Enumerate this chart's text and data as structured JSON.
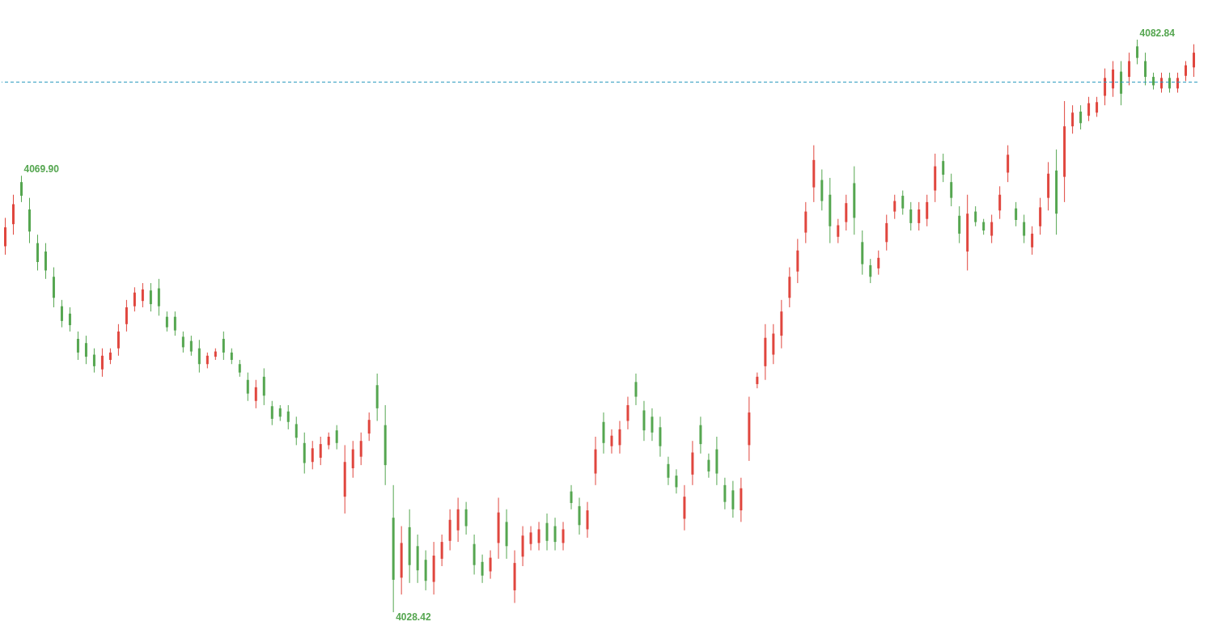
{
  "chart_data": {
    "type": "candlestick",
    "categories": [
      null,
      null,
      null,
      null,
      null,
      null,
      null,
      null,
      null,
      null,
      null,
      null,
      null,
      null,
      null,
      null,
      null,
      null,
      null,
      null,
      null,
      null,
      null,
      null,
      null,
      null,
      null,
      null,
      null,
      null,
      null,
      null,
      null,
      null,
      null,
      null,
      null,
      null,
      null,
      null,
      null,
      null,
      null,
      null,
      null,
      null,
      null,
      null,
      null,
      null,
      null,
      null,
      null,
      null,
      null,
      null,
      null,
      null,
      null,
      null,
      null,
      null,
      null,
      null,
      null,
      null,
      null,
      null,
      null,
      null,
      null,
      null,
      null,
      null,
      null,
      null,
      null,
      null,
      null,
      null,
      null,
      null,
      null,
      null,
      null,
      null,
      null,
      null,
      null,
      null,
      null,
      null,
      null,
      null,
      null,
      null,
      null,
      null,
      null,
      null,
      null,
      null,
      null,
      null,
      null,
      null,
      null,
      null,
      null,
      null,
      null,
      null,
      null,
      null,
      null,
      null,
      null,
      null,
      null,
      null,
      null,
      null,
      null,
      null,
      null,
      null,
      null,
      null,
      null,
      null,
      null,
      null,
      null,
      null,
      null,
      null,
      null,
      null,
      null,
      null,
      null,
      null,
      null,
      null,
      null,
      null,
      null,
      null
    ],
    "colors": [
      "#e0463e",
      "#e0463e",
      "#55a650",
      "#55a650",
      "#55a650",
      "#55a650",
      "#55a650",
      "#55a650",
      "#55a650",
      "#55a650",
      "#55a650",
      "#55a650",
      "#e0463e",
      "#e0463e",
      "#e0463e",
      "#e0463e",
      "#e0463e",
      "#e0463e",
      "#55a650",
      "#55a650",
      "#55a650",
      "#55a650",
      "#55a650",
      "#55a650",
      "#55a650",
      "#e0463e",
      "#e0463e",
      "#55a650",
      "#55a650",
      "#55a650",
      "#55a650",
      "#e0463e",
      "#55a650",
      "#55a650",
      "#55a650",
      "#55a650",
      "#55a650",
      "#55a650",
      "#e0463e",
      "#e0463e",
      "#e0463e",
      "#55a650",
      "#e0463e",
      "#e0463e",
      "#e0463e",
      "#e0463e",
      "#55a650",
      "#55a650",
      "#55a650",
      "#e0463e",
      "#55a650",
      "#55a650",
      "#55a650",
      "#e0463e",
      "#e0463e",
      "#e0463e",
      "#e0463e",
      "#55a650",
      "#55a650",
      "#55a650",
      "#e0463e",
      "#e0463e",
      "#55a650",
      "#e0463e",
      "#e0463e",
      "#e0463e",
      "#e0463e",
      "#55a650",
      "#55a650",
      "#e0463e",
      "#55a650",
      "#55a650",
      "#e0463e",
      "#e0463e",
      "#55a650",
      "#e0463e",
      "#e0463e",
      "#e0463e",
      "#55a650",
      "#55a650",
      "#55a650",
      "#55a650",
      "#55a650",
      "#55a650",
      "#e0463e",
      "#e0463e",
      "#55a650",
      "#55a650",
      "#55a650",
      "#55a650",
      "#55a650",
      "#e0463e",
      "#e0463e",
      "#e0463e",
      "#e0463e",
      "#e0463e",
      "#e0463e",
      "#e0463e",
      "#e0463e",
      "#e0463e",
      "#e0463e",
      "#55a650",
      "#55a650",
      "#e0463e",
      "#e0463e",
      "#55a650",
      "#55a650",
      "#55a650",
      "#e0463e",
      "#e0463e",
      "#e0463e",
      "#55a650",
      "#55a650",
      "#e0463e",
      "#e0463e",
      "#e0463e",
      "#55a650",
      "#55a650",
      "#55a650",
      "#e0463e",
      "#55a650",
      "#55a650",
      "#e0463e",
      "#e0463e",
      "#e0463e",
      "#55a650",
      "#55a650",
      "#e0463e",
      "#e0463e",
      "#e0463e",
      "#55a650",
      "#e0463e",
      "#e0463e",
      "#55a650",
      "#e0463e",
      "#e0463e",
      "#e0463e",
      "#e0463e",
      "#55a650",
      "#e0463e",
      "#55a650",
      "#55a650",
      "#55a650",
      "#e0463e",
      "#55a650",
      "#e0463e",
      "#e0463e",
      "#e0463e"
    ],
    "ohlc": [
      [
        4063.2,
        4065.9,
        4062.4,
        4065.0
      ],
      [
        4065.3,
        4068.1,
        4064.3,
        4067.2
      ],
      [
        4069.3,
        4069.9,
        4067.4,
        4068.0
      ],
      [
        4066.7,
        4067.8,
        4063.5,
        4064.6
      ],
      [
        4063.5,
        4064.3,
        4060.9,
        4061.7
      ],
      [
        4062.7,
        4063.5,
        4060.1,
        4060.9
      ],
      [
        4060.3,
        4061.2,
        4057.4,
        4058.3
      ],
      [
        4057.5,
        4058.1,
        4055.5,
        4056.1
      ],
      [
        4056.8,
        4057.4,
        4055.1,
        4055.7
      ],
      [
        4054.4,
        4055.1,
        4052.4,
        4053.1
      ],
      [
        4054.0,
        4054.7,
        4052.0,
        4052.7
      ],
      [
        4052.9,
        4053.5,
        4051.2,
        4051.8
      ],
      [
        4051.5,
        4053.5,
        4050.8,
        4052.8
      ],
      [
        4052.4,
        4053.5,
        4052.0,
        4053.1
      ],
      [
        4053.5,
        4055.8,
        4052.8,
        4055.1
      ],
      [
        4055.8,
        4058.1,
        4055.1,
        4057.4
      ],
      [
        4057.5,
        4059.3,
        4057.0,
        4058.8
      ],
      [
        4058.0,
        4059.7,
        4057.4,
        4059.1
      ],
      [
        4059.0,
        4059.7,
        4057.0,
        4057.7
      ],
      [
        4059.2,
        4060.1,
        4056.6,
        4057.5
      ],
      [
        4056.5,
        4057.0,
        4055.1,
        4055.5
      ],
      [
        4056.5,
        4057.0,
        4054.7,
        4055.2
      ],
      [
        4054.6,
        4055.1,
        4053.1,
        4053.6
      ],
      [
        4054.2,
        4054.7,
        4052.8,
        4053.2
      ],
      [
        4053.5,
        4054.3,
        4051.2,
        4052.0
      ],
      [
        4052.0,
        4053.1,
        4051.6,
        4052.8
      ],
      [
        4052.7,
        4053.5,
        4052.4,
        4053.2
      ],
      [
        4054.4,
        4055.1,
        4052.4,
        4053.1
      ],
      [
        4053.1,
        4053.5,
        4052.0,
        4052.4
      ],
      [
        4052.0,
        4052.4,
        4050.8,
        4051.2
      ],
      [
        4050.5,
        4051.2,
        4048.5,
        4049.2
      ],
      [
        4048.5,
        4050.5,
        4047.8,
        4049.8
      ],
      [
        4050.8,
        4051.6,
        4048.1,
        4049.0
      ],
      [
        4048.0,
        4048.5,
        4046.2,
        4046.8
      ],
      [
        4047.8,
        4048.1,
        4046.6,
        4047.0
      ],
      [
        4047.5,
        4048.1,
        4045.8,
        4046.5
      ],
      [
        4046.3,
        4047.0,
        4044.3,
        4045.0
      ],
      [
        4044.5,
        4045.5,
        4041.6,
        4042.6
      ],
      [
        4042.7,
        4044.7,
        4042.0,
        4044.0
      ],
      [
        4043.1,
        4045.1,
        4042.4,
        4044.4
      ],
      [
        4044.3,
        4045.5,
        4043.9,
        4045.1
      ],
      [
        4045.7,
        4046.2,
        4043.9,
        4044.5
      ],
      [
        4039.4,
        4044.3,
        4037.8,
        4042.7
      ],
      [
        4042.1,
        4044.7,
        4041.2,
        4043.9
      ],
      [
        4043.2,
        4045.5,
        4042.4,
        4044.7
      ],
      [
        4045.4,
        4047.4,
        4044.7,
        4046.7
      ],
      [
        4050.0,
        4051.1,
        4046.6,
        4047.8
      ],
      [
        4046.2,
        4048.1,
        4040.5,
        4042.4
      ],
      [
        4037.4,
        4040.5,
        4028.42,
        4031.5
      ],
      [
        4031.7,
        4036.6,
        4030.1,
        4035.0
      ],
      [
        4036.5,
        4038.2,
        4031.2,
        4032.9
      ],
      [
        4034.7,
        4035.8,
        4031.2,
        4032.4
      ],
      [
        4033.4,
        4034.3,
        4030.5,
        4031.4
      ],
      [
        4031.3,
        4035.1,
        4030.1,
        4033.8
      ],
      [
        4033.5,
        4035.8,
        4032.8,
        4035.1
      ],
      [
        4035.2,
        4038.2,
        4034.3,
        4037.2
      ],
      [
        4036.2,
        4039.3,
        4035.1,
        4038.2
      ],
      [
        4038.2,
        4038.9,
        4035.8,
        4036.6
      ],
      [
        4034.9,
        4035.8,
        4032.0,
        4032.9
      ],
      [
        4033.2,
        4033.9,
        4031.2,
        4031.9
      ],
      [
        4032.3,
        4034.3,
        4031.6,
        4033.6
      ],
      [
        4035.0,
        4039.3,
        4033.5,
        4037.9
      ],
      [
        4037.0,
        4038.2,
        4033.5,
        4034.7
      ],
      [
        4030.5,
        4034.3,
        4029.3,
        4033.1
      ],
      [
        4033.7,
        4036.6,
        4032.8,
        4035.7
      ],
      [
        4034.9,
        4036.6,
        4034.3,
        4036.0
      ],
      [
        4035.0,
        4037.0,
        4034.3,
        4036.3
      ],
      [
        4036.9,
        4037.8,
        4034.3,
        4035.2
      ],
      [
        4036.6,
        4037.4,
        4034.3,
        4035.1
      ],
      [
        4035.0,
        4037.0,
        4034.3,
        4036.3
      ],
      [
        4039.9,
        4040.5,
        4038.2,
        4038.8
      ],
      [
        4038.5,
        4039.3,
        4035.8,
        4036.7
      ],
      [
        4036.3,
        4038.9,
        4035.5,
        4038.1
      ],
      [
        4041.6,
        4045.1,
        4040.5,
        4043.9
      ],
      [
        4046.5,
        4047.4,
        4043.5,
        4044.5
      ],
      [
        4044.2,
        4045.8,
        4043.5,
        4045.2
      ],
      [
        4044.3,
        4046.6,
        4043.5,
        4045.8
      ],
      [
        4046.6,
        4048.9,
        4045.8,
        4048.1
      ],
      [
        4050.3,
        4051.1,
        4048.1,
        4048.9
      ],
      [
        4047.6,
        4048.5,
        4044.7,
        4045.7
      ],
      [
        4047.0,
        4047.8,
        4044.7,
        4045.5
      ],
      [
        4046.0,
        4047.0,
        4043.2,
        4044.2
      ],
      [
        4042.5,
        4043.2,
        4040.5,
        4041.2
      ],
      [
        4041.4,
        4042.0,
        4039.7,
        4040.3
      ],
      [
        4037.3,
        4040.5,
        4036.2,
        4039.4
      ],
      [
        4041.5,
        4044.7,
        4040.5,
        4043.6
      ],
      [
        4046.2,
        4047.0,
        4043.5,
        4044.4
      ],
      [
        4042.9,
        4043.5,
        4041.2,
        4041.8
      ],
      [
        4043.9,
        4045.1,
        4040.5,
        4041.6
      ],
      [
        4040.5,
        4041.2,
        4038.2,
        4038.9
      ],
      [
        4040.0,
        4040.9,
        4037.4,
        4038.2
      ],
      [
        4038.1,
        4041.2,
        4037.0,
        4040.2
      ],
      [
        4044.3,
        4048.9,
        4042.8,
        4047.4
      ],
      [
        4050.1,
        4051.2,
        4049.7,
        4050.8
      ],
      [
        4051.8,
        4055.8,
        4050.5,
        4054.5
      ],
      [
        4052.9,
        4055.8,
        4052.0,
        4054.9
      ],
      [
        4054.7,
        4058.1,
        4053.5,
        4057.0
      ],
      [
        4058.3,
        4061.2,
        4057.4,
        4060.3
      ],
      [
        4060.8,
        4063.9,
        4059.7,
        4062.8
      ],
      [
        4064.5,
        4067.4,
        4063.5,
        4066.5
      ],
      [
        4068.8,
        4072.8,
        4067.4,
        4071.4
      ],
      [
        4069.5,
        4070.5,
        4066.6,
        4067.5
      ],
      [
        4068.1,
        4069.7,
        4063.5,
        4065.1
      ],
      [
        4064.1,
        4065.8,
        4063.5,
        4065.2
      ],
      [
        4065.5,
        4068.1,
        4064.7,
        4067.3
      ],
      [
        4069.2,
        4070.8,
        4064.3,
        4065.9
      ],
      [
        4063.6,
        4064.7,
        4060.5,
        4061.5
      ],
      [
        4061.4,
        4062.0,
        4059.7,
        4060.3
      ],
      [
        4061.1,
        4062.8,
        4060.5,
        4062.1
      ],
      [
        4063.6,
        4066.2,
        4062.8,
        4065.4
      ],
      [
        4066.5,
        4068.1,
        4065.8,
        4067.5
      ],
      [
        4068.0,
        4068.5,
        4066.2,
        4066.8
      ],
      [
        4066.7,
        4067.4,
        4064.7,
        4065.4
      ],
      [
        4065.4,
        4067.4,
        4064.7,
        4066.7
      ],
      [
        4065.8,
        4068.1,
        4065.1,
        4067.4
      ],
      [
        4068.5,
        4072.0,
        4067.4,
        4070.8
      ],
      [
        4071.3,
        4072.0,
        4069.3,
        4070.0
      ],
      [
        4069.3,
        4070.1,
        4067.0,
        4067.8
      ],
      [
        4066.1,
        4067.0,
        4063.5,
        4064.4
      ],
      [
        4062.7,
        4068.1,
        4060.9,
        4066.3
      ],
      [
        4066.5,
        4067.0,
        4065.1,
        4065.5
      ],
      [
        4065.5,
        4065.8,
        4064.3,
        4064.7
      ],
      [
        4064.2,
        4066.2,
        4063.5,
        4065.5
      ],
      [
        4066.6,
        4068.9,
        4065.8,
        4068.1
      ],
      [
        4070.2,
        4072.8,
        4069.3,
        4071.9
      ],
      [
        4066.8,
        4067.4,
        4065.1,
        4065.7
      ],
      [
        4065.5,
        4066.2,
        4063.5,
        4064.2
      ],
      [
        4063.1,
        4065.1,
        4062.4,
        4064.4
      ],
      [
        4065.1,
        4067.8,
        4064.3,
        4066.9
      ],
      [
        4067.8,
        4071.2,
        4066.6,
        4070.1
      ],
      [
        4070.4,
        4072.4,
        4064.3,
        4066.3
      ],
      [
        4069.8,
        4077.0,
        4067.4,
        4074.6
      ],
      [
        4074.6,
        4076.6,
        4073.9,
        4075.9
      ],
      [
        4076.0,
        4076.6,
        4074.3,
        4074.9
      ],
      [
        4075.6,
        4077.4,
        4075.1,
        4076.8
      ],
      [
        4075.9,
        4077.4,
        4075.5,
        4076.9
      ],
      [
        4077.5,
        4080.1,
        4076.6,
        4079.2
      ],
      [
        4078.2,
        4080.8,
        4077.4,
        4080.0
      ],
      [
        4079.8,
        4080.8,
        4076.6,
        4077.7
      ],
      [
        4079.3,
        4081.6,
        4078.5,
        4080.8
      ],
      [
        4082.2,
        4082.84,
        4080.5,
        4081.1
      ],
      [
        4080.8,
        4081.6,
        4078.5,
        4079.3
      ],
      [
        4079.3,
        4079.7,
        4078.1,
        4078.5
      ],
      [
        4078.2,
        4079.7,
        4077.8,
        4079.2
      ],
      [
        4079.2,
        4079.7,
        4077.8,
        4078.2
      ],
      [
        4078.2,
        4079.7,
        4077.8,
        4079.2
      ],
      [
        4079.4,
        4080.8,
        4078.9,
        4080.4
      ],
      [
        4080.2,
        4082.4,
        4079.3,
        4081.6
      ]
    ],
    "ref_lines": [
      {
        "axis": "y",
        "value": 4078.8,
        "color": "#2b9bbf",
        "line_style": "dashed"
      }
    ],
    "annotations": [
      "4069.90",
      "4028.42",
      "4082.84"
    ]
  }
}
